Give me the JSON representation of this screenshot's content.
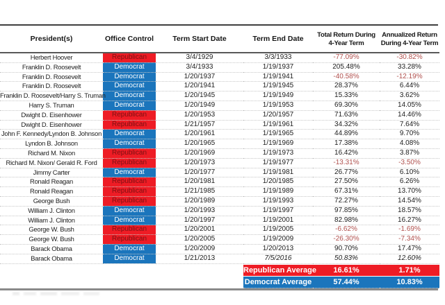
{
  "colors": {
    "republican-red": "#ee1c25",
    "democrat-blue": "#1b75bc",
    "republican-cell-text": "#7a1113",
    "negative-text": "#b0504d",
    "rule-dark": "#3e3e3e",
    "rule-light": "#8a8a8a"
  },
  "chart_data": {
    "type": "table",
    "columns": [
      "President(s)",
      "Office Control",
      "Term Start Date",
      "Term End Date",
      [
        "Total Return During",
        "4-Year Term"
      ],
      [
        "Annualized Return",
        "During 4-Year Term"
      ]
    ],
    "rows": [
      [
        "Herbert Hoover",
        "Republican",
        "3/4/1929",
        "3/3/1933",
        "-77.09%",
        "-30.82%"
      ],
      [
        "Franklin D. Roosevelt",
        "Democrat",
        "3/4/1933",
        "1/19/1937",
        "205.48%",
        "33.28%"
      ],
      [
        "Franklin D. Roosevelt",
        "Democrat",
        "1/20/1937",
        "1/19/1941",
        "-40.58%",
        "-12.19%"
      ],
      [
        "Franklin D. Roosevelt",
        "Democrat",
        "1/20/1941",
        "1/19/1945",
        "28.37%",
        "6.44%"
      ],
      [
        "Franklin D. Roosevelt/Harry S. Truman",
        "Democrat",
        "1/20/1945",
        "1/19/1949",
        "15.33%",
        "3.62%"
      ],
      [
        "Harry S. Truman",
        "Democrat",
        "1/20/1949",
        "1/19/1953",
        "69.30%",
        "14.05%"
      ],
      [
        "Dwight D. Eisenhower",
        "Republican",
        "1/20/1953",
        "1/20/1957",
        "71.63%",
        "14.46%"
      ],
      [
        "Dwight D. Eisenhower",
        "Republican",
        "1/21/1957",
        "1/19/1961",
        "34.32%",
        "7.64%"
      ],
      [
        "John F. Kennedy/Lyndon B. Johnson",
        "Democrat",
        "1/20/1961",
        "1/19/1965",
        "44.89%",
        "9.70%"
      ],
      [
        "Lyndon B. Johnson",
        "Democrat",
        "1/20/1965",
        "1/19/1969",
        "17.38%",
        "4.08%"
      ],
      [
        "Richard M. Nixon",
        "Republican",
        "1/20/1969",
        "1/19/1973",
        "16.42%",
        "3.87%"
      ],
      [
        "Richard M. Nixon/ Gerald R. Ford",
        "Republican",
        "1/20/1973",
        "1/19/1977",
        "-13.31%",
        "-3.50%"
      ],
      [
        "Jimmy Carter",
        "Democrat",
        "1/20/1977",
        "1/19/1981",
        "26.77%",
        "6.10%"
      ],
      [
        "Ronald Reagan",
        "Republican",
        "1/20/1981",
        "1/20/1985",
        "27.50%",
        "6.26%"
      ],
      [
        "Ronald Reagan",
        "Republican",
        "1/21/1985",
        "1/19/1989",
        "67.31%",
        "13.70%"
      ],
      [
        "George Bush",
        "Republican",
        "1/20/1989",
        "1/19/1993",
        "72.27%",
        "14.54%"
      ],
      [
        "William J. Clinton",
        "Democrat",
        "1/20/1993",
        "1/19/1997",
        "97.85%",
        "18.57%"
      ],
      [
        "William J. Clinton",
        "Democrat",
        "1/20/1997",
        "1/19/2001",
        "82.98%",
        "16.27%"
      ],
      [
        "George W. Bush",
        "Republican",
        "1/20/2001",
        "1/19/2005",
        "-6.62%",
        "-1.69%"
      ],
      [
        "George W. Bush",
        "Republican",
        "1/20/2005",
        "1/19/2009",
        "-26.30%",
        "-7.34%"
      ],
      [
        "Barack Obama",
        "Democrat",
        "1/20/2009",
        "1/20/2013",
        "90.70%",
        "17.47%"
      ],
      [
        "Barack Obama",
        "Democrat",
        "1/21/2013",
        "7/5/2016",
        "50.83%",
        "12.60%"
      ]
    ],
    "partial_term_row_index": 21,
    "summary": [
      [
        "Republican Average",
        "16.61%",
        "1.71%"
      ],
      [
        "Democrat Average",
        "57.44%",
        "10.83%"
      ]
    ],
    "party_values": {
      "republican": "Republican",
      "democrat": "Democrat"
    }
  }
}
